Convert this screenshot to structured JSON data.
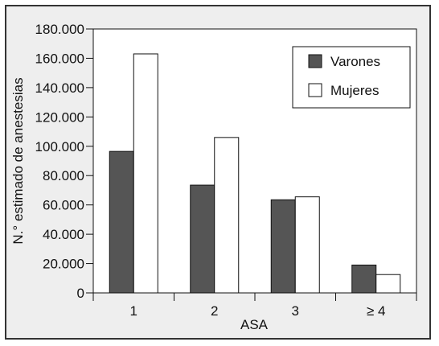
{
  "chart_data": {
    "type": "bar",
    "title": "",
    "xlabel": "ASA",
    "ylabel": "N.° estimado de anestesias",
    "categories": [
      "1",
      "2",
      "3",
      "≥ 4"
    ],
    "series": [
      {
        "name": "Varones",
        "color": "#555555",
        "values": [
          96500,
          73500,
          63500,
          19000
        ]
      },
      {
        "name": "Mujeres",
        "color": "#ffffff",
        "values": [
          163000,
          106000,
          65500,
          12500
        ]
      }
    ],
    "ylim": [
      0,
      180000
    ],
    "yticks": [
      "0",
      "20.000",
      "40.000",
      "60.000",
      "80.000",
      "100.000",
      "120.000",
      "140.000",
      "160.000",
      "180.000"
    ],
    "grid": false,
    "legend": "top-right",
    "colors": {
      "panel": "#eeeeee",
      "plot": "#ffffff",
      "axis": "#111111"
    }
  }
}
